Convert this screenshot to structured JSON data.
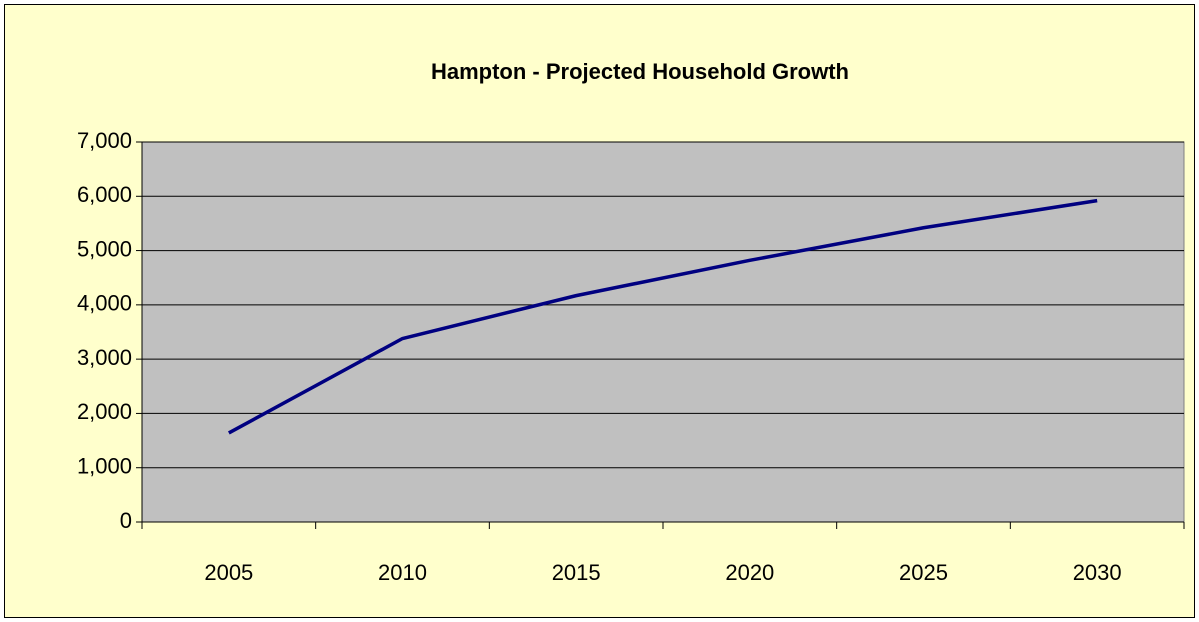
{
  "chart_data": {
    "type": "line",
    "title": "Hampton - Projected Household Growth",
    "categories": [
      "2005",
      "2010",
      "2015",
      "2020",
      "2025",
      "2030"
    ],
    "values": [
      1640,
      3380,
      4170,
      4820,
      5420,
      5920
    ],
    "color": "#000080",
    "ylim": [
      0,
      7000
    ],
    "yticks": [
      0,
      {
        "value": 1000,
        "label": "1,000"
      },
      {
        "value": 2000,
        "label": "2,000"
      },
      {
        "value": 3000,
        "label": "3,000"
      },
      {
        "value": 4000,
        "label": "4,000"
      },
      {
        "value": 5000,
        "label": "5,000"
      },
      {
        "value": 6000,
        "label": "6,000"
      },
      {
        "value": 7000,
        "label": "7,000"
      }
    ],
    "grid": true
  }
}
